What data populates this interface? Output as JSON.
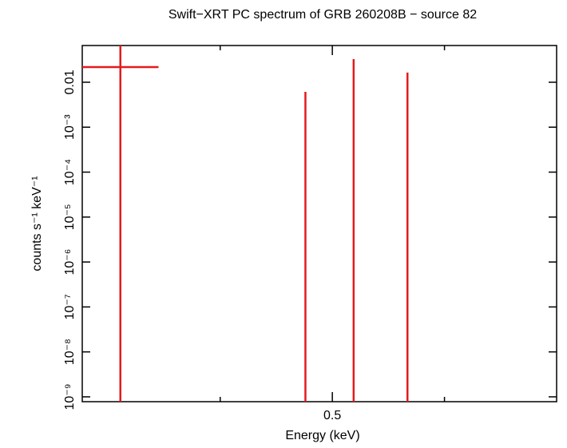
{
  "chart_data": {
    "type": "errorbar",
    "title": "Swift−XRT PC spectrum of GRB 260208B − source 82",
    "x_label": "Energy (keV)",
    "y_label": "counts s⁻¹ keV⁻¹",
    "x": [
      0.311,
      0.476,
      0.519,
      0.567
    ],
    "xerr": [
      0.034,
      0,
      0,
      0
    ],
    "values": [
      0.0217,
      0.00306,
      0.0164,
      0.0082
    ],
    "yerr": [
      0.05,
      0.00306,
      0.0164,
      0.0082
    ],
    "color": "#e41a1c",
    "xlim": [
      0.277,
      0.7
    ],
    "xticks": [
      0.5
    ],
    "xminor": [
      0.4,
      0.6
    ],
    "ylim": [
      7.8e-10,
      0.0656
    ],
    "ylog": true,
    "yticks": [
      0.01,
      {
        "value": 0.001,
        "label": "10⁻³"
      },
      {
        "value": 0.0001,
        "label": "10⁻⁴"
      },
      {
        "value": 1e-05,
        "label": "10⁻⁵"
      },
      {
        "value": 1e-06,
        "label": "10⁻⁶"
      },
      {
        "value": 1e-07,
        "label": "10⁻⁷"
      },
      {
        "value": 1e-08,
        "label": "10⁻⁸"
      },
      {
        "value": 1e-09,
        "label": "10⁻⁹"
      }
    ]
  }
}
